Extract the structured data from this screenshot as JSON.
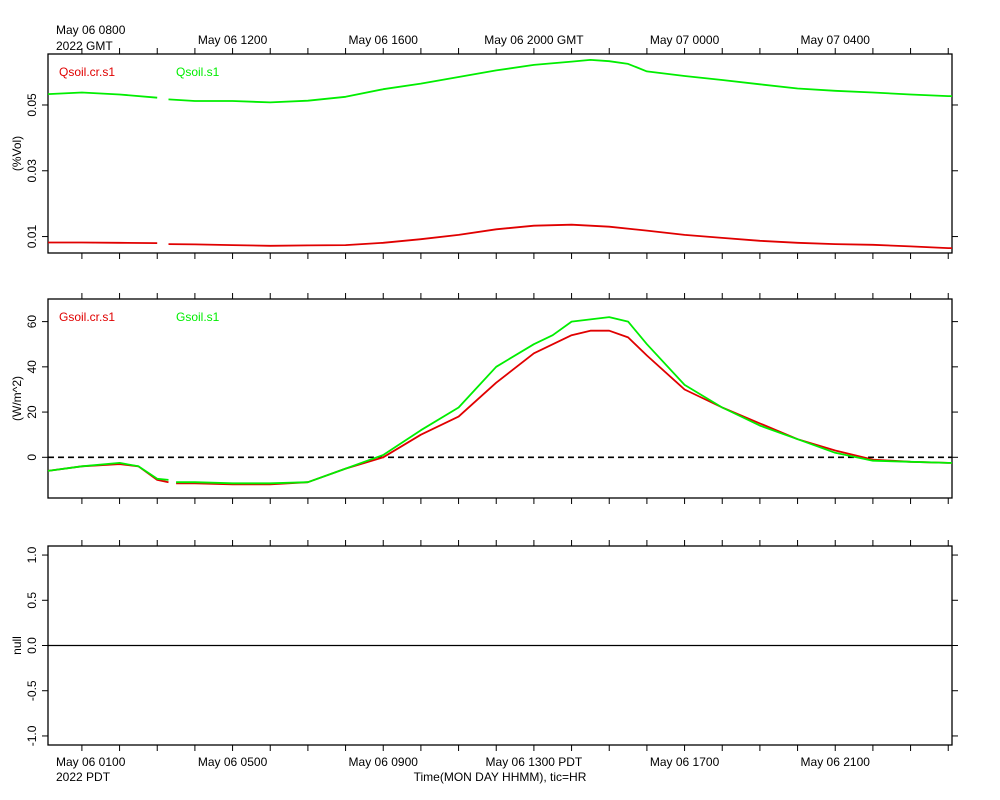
{
  "top_labels": {
    "start_date": "May 06 0800",
    "start_year": "2022 GMT"
  },
  "bottom_labels": {
    "start_date": "May 06 0100",
    "start_year": "2022 PDT",
    "axis_caption": "Time(MON DAY HHMM), tic=HR"
  },
  "colors": {
    "series1": "#e00000",
    "series2": "#00ee00",
    "axis": "#000000"
  },
  "chart_data": [
    {
      "type": "line",
      "panel": "soil-moisture",
      "ylabel": "(%Vol)",
      "ylim": [
        0.005,
        0.0655
      ],
      "yticks": [
        0.01,
        0.03,
        0.05
      ],
      "top_tick_labels": [
        "May 06 1200",
        "May 06 1600",
        "May 06 2000 GMT",
        "May 07 0000",
        "May 07 0400"
      ],
      "series": [
        {
          "name": "Qsoil.cr.s1",
          "color": "#e00000",
          "segments": [
            [
              [
                -0.9,
                0.0082
              ],
              [
                0,
                0.0082
              ],
              [
                1,
                0.0081
              ],
              [
                2,
                0.008
              ]
            ],
            [
              [
                2.3,
                0.0077
              ],
              [
                3,
                0.0076
              ],
              [
                4,
                0.0074
              ],
              [
                5,
                0.0072
              ],
              [
                6,
                0.0073
              ],
              [
                7,
                0.0074
              ],
              [
                8,
                0.0081
              ],
              [
                9,
                0.0092
              ],
              [
                10,
                0.0105
              ],
              [
                11,
                0.0122
              ],
              [
                12,
                0.0133
              ],
              [
                13,
                0.0136
              ],
              [
                14,
                0.013
              ],
              [
                15,
                0.0118
              ],
              [
                16,
                0.0105
              ],
              [
                17,
                0.0096
              ],
              [
                18,
                0.0087
              ],
              [
                19,
                0.0081
              ],
              [
                20,
                0.0077
              ],
              [
                21,
                0.0075
              ],
              [
                22,
                0.007
              ],
              [
                23,
                0.0065
              ],
              [
                23.1,
                0.0065
              ]
            ]
          ]
        },
        {
          "name": "Qsoil.s1",
          "color": "#00ee00",
          "segments": [
            [
              [
                -0.9,
                0.0533
              ],
              [
                0,
                0.0538
              ],
              [
                1,
                0.0532
              ],
              [
                2,
                0.0522
              ]
            ],
            [
              [
                2.3,
                0.0517
              ],
              [
                3,
                0.0512
              ],
              [
                4,
                0.0512
              ],
              [
                5,
                0.0508
              ],
              [
                6,
                0.0513
              ],
              [
                7,
                0.0525
              ],
              [
                8,
                0.0548
              ],
              [
                9,
                0.0565
              ],
              [
                10,
                0.0585
              ],
              [
                11,
                0.0605
              ],
              [
                12,
                0.0622
              ],
              [
                13,
                0.0632
              ],
              [
                13.5,
                0.0637
              ],
              [
                14,
                0.0633
              ],
              [
                14.5,
                0.0625
              ],
              [
                15,
                0.0602
              ],
              [
                16,
                0.0588
              ],
              [
                17,
                0.0576
              ],
              [
                18,
                0.0563
              ],
              [
                19,
                0.055
              ],
              [
                20,
                0.0543
              ],
              [
                21,
                0.0538
              ],
              [
                22,
                0.0532
              ],
              [
                23,
                0.0527
              ],
              [
                23.1,
                0.0527
              ]
            ]
          ]
        }
      ]
    },
    {
      "type": "line",
      "panel": "soil-heat-flux",
      "ylabel": "(W/m^2)",
      "ylim": [
        -18,
        70
      ],
      "yticks": [
        0,
        20,
        40,
        60
      ],
      "zero_line": "dashed",
      "series": [
        {
          "name": "Gsoil.cr.s1",
          "color": "#e00000",
          "segments": [
            [
              [
                -0.9,
                -6
              ],
              [
                0,
                -4
              ],
              [
                1,
                -3
              ],
              [
                1.5,
                -4
              ],
              [
                2,
                -10
              ],
              [
                2.3,
                -11
              ]
            ],
            [
              [
                2.5,
                -11.5
              ],
              [
                3,
                -11.5
              ],
              [
                4,
                -12
              ],
              [
                5,
                -12
              ],
              [
                6,
                -11
              ],
              [
                7,
                -5
              ],
              [
                8,
                0
              ],
              [
                9,
                10
              ],
              [
                10,
                18
              ],
              [
                11,
                33
              ],
              [
                12,
                46
              ],
              [
                13,
                54
              ],
              [
                13.5,
                56
              ],
              [
                14,
                56
              ],
              [
                14.5,
                53
              ],
              [
                15,
                45
              ],
              [
                16,
                30
              ],
              [
                17,
                22
              ],
              [
                18,
                15
              ],
              [
                19,
                8
              ],
              [
                20,
                3
              ],
              [
                21,
                -1
              ],
              [
                22,
                -2
              ],
              [
                23,
                -2.5
              ],
              [
                23.1,
                -2.5
              ]
            ]
          ]
        },
        {
          "name": "Gsoil.s1",
          "color": "#00ee00",
          "segments": [
            [
              [
                -0.9,
                -6
              ],
              [
                0,
                -4
              ],
              [
                1,
                -2.5
              ],
              [
                1.5,
                -4
              ],
              [
                2,
                -9.5
              ],
              [
                2.3,
                -10
              ]
            ],
            [
              [
                2.5,
                -11
              ],
              [
                3,
                -11
              ],
              [
                4,
                -11.5
              ],
              [
                5,
                -11.5
              ],
              [
                6,
                -11
              ],
              [
                7,
                -5
              ],
              [
                8,
                1
              ],
              [
                9,
                12
              ],
              [
                10,
                22
              ],
              [
                11,
                40
              ],
              [
                12,
                50
              ],
              [
                12.5,
                54
              ],
              [
                13,
                60
              ],
              [
                14,
                62
              ],
              [
                14.5,
                60
              ],
              [
                15,
                50
              ],
              [
                16,
                32
              ],
              [
                17,
                22
              ],
              [
                18,
                14
              ],
              [
                19,
                8
              ],
              [
                20,
                2
              ],
              [
                21,
                -1.5
              ],
              [
                22,
                -2
              ],
              [
                23,
                -2.5
              ],
              [
                23.1,
                -2.5
              ]
            ]
          ]
        }
      ]
    },
    {
      "type": "line",
      "panel": "null-panel",
      "ylabel": "null",
      "ylim": [
        -1.1,
        1.1
      ],
      "yticks": [
        -1.0,
        -0.5,
        0.0,
        0.5,
        1.0
      ],
      "ytick_labels": [
        "-1.0",
        "-0.5",
        "0.0",
        "0.5",
        "1.0"
      ],
      "bottom_tick_labels": [
        "May 06 0500",
        "May 06 0900",
        "May 06 1300 PDT",
        "May 06 1700",
        "May 06 2100"
      ],
      "series": [
        {
          "color": "#000000",
          "segments": [
            [
              [
                -0.9,
                0
              ],
              [
                23.1,
                0
              ]
            ]
          ]
        }
      ]
    }
  ]
}
